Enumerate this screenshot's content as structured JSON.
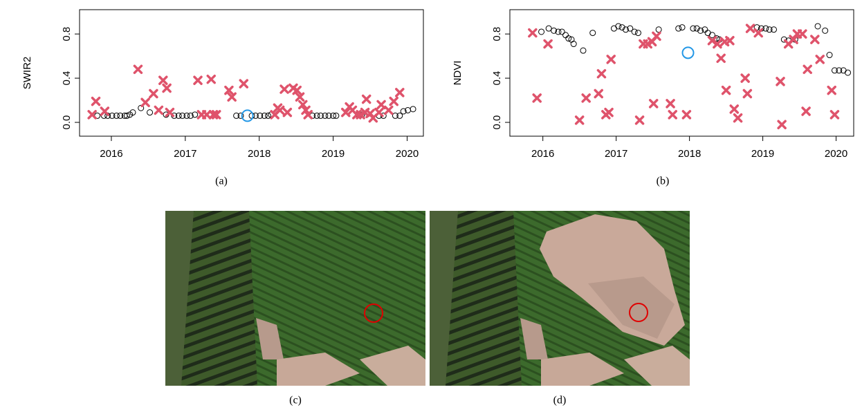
{
  "chart_data": [
    {
      "type": "scatter",
      "y_label": "SWIR2",
      "caption": "(a)",
      "xlim": [
        2015.57,
        2020.22
      ],
      "ylim": [
        -0.125,
        1.02
      ],
      "xticks": [
        2016,
        2017,
        2018,
        2019,
        2020
      ],
      "yticks": [
        {
          "value": 0,
          "label": "0.0"
        },
        0.4,
        0.8
      ],
      "series": [
        {
          "marker": "circle",
          "color": "#000000",
          "x": [
            2015.81,
            2015.9,
            2015.95,
            2016.01,
            2016.07,
            2016.12,
            2016.18,
            2016.21,
            2016.25,
            2016.29,
            2016.4,
            2016.52,
            2016.74,
            2016.85,
            2016.91,
            2016.96,
            2017.02,
            2017.07,
            2017.13,
            2017.69,
            2017.75,
            2017.9,
            2017.95,
            2018.01,
            2018.07,
            2018.12,
            2018.16,
            2018.72,
            2018.78,
            2018.83,
            2018.89,
            2018.94,
            2019.0,
            2019.04,
            2019.34,
            2019.39,
            2019.62,
            2019.68,
            2019.84,
            2019.9,
            2019.95,
            2020.01,
            2020.08
          ],
          "values": [
            0.06,
            0.06,
            0.06,
            0.06,
            0.06,
            0.06,
            0.06,
            0.06,
            0.07,
            0.09,
            0.13,
            0.09,
            0.07,
            0.06,
            0.06,
            0.06,
            0.06,
            0.06,
            0.07,
            0.06,
            0.06,
            0.06,
            0.06,
            0.06,
            0.06,
            0.06,
            0.07,
            0.06,
            0.06,
            0.06,
            0.06,
            0.06,
            0.06,
            0.06,
            0.07,
            0.07,
            0.06,
            0.06,
            0.06,
            0.06,
            0.1,
            0.11,
            0.12
          ]
        },
        {
          "marker": "cross",
          "color": "#df536b",
          "x": [
            2015.74,
            2015.79,
            2015.91,
            2016.36,
            2016.46,
            2016.57,
            2016.64,
            2016.7,
            2016.75,
            2016.79,
            2017.17,
            2017.22,
            2017.29,
            2017.35,
            2017.38,
            2017.42,
            2017.59,
            2017.63,
            2017.79,
            2018.21,
            2018.25,
            2018.28,
            2018.34,
            2018.38,
            2018.46,
            2018.51,
            2018.55,
            2018.59,
            2018.63,
            2018.66,
            2019.17,
            2019.22,
            2019.26,
            2019.32,
            2019.37,
            2019.43,
            2019.45,
            2019.5,
            2019.54,
            2019.62,
            2019.65,
            2019.75,
            2019.82,
            2019.9
          ],
          "values": [
            0.07,
            0.19,
            0.1,
            0.48,
            0.18,
            0.26,
            0.11,
            0.38,
            0.31,
            0.09,
            0.38,
            0.07,
            0.07,
            0.39,
            0.07,
            0.07,
            0.29,
            0.23,
            0.35,
            0.07,
            0.13,
            0.11,
            0.3,
            0.09,
            0.31,
            0.29,
            0.23,
            0.16,
            0.11,
            0.07,
            0.09,
            0.14,
            0.11,
            0.07,
            0.07,
            0.09,
            0.21,
            0.08,
            0.04,
            0.09,
            0.16,
            0.11,
            0.19,
            0.27
          ]
        },
        {
          "marker": "ring",
          "color": "#2297e6",
          "x": [
            2017.84
          ],
          "values": [
            0.06
          ]
        }
      ]
    },
    {
      "type": "scatter",
      "y_label": "NDVI",
      "caption": "(b)",
      "xlim": [
        2015.55,
        2020.24
      ],
      "ylim": [
        -0.125,
        1.02
      ],
      "xticks": [
        2016,
        2017,
        2018,
        2019,
        2020
      ],
      "yticks": [
        {
          "value": 0,
          "label": "0.0"
        },
        0.4,
        0.8
      ],
      "series": [
        {
          "marker": "circle",
          "color": "#000000",
          "x": [
            2015.98,
            2016.08,
            2016.15,
            2016.21,
            2016.26,
            2016.31,
            2016.35,
            2016.39,
            2016.42,
            2016.55,
            2016.68,
            2016.97,
            2017.03,
            2017.08,
            2017.13,
            2017.19,
            2017.25,
            2017.3,
            2017.58,
            2017.85,
            2017.9,
            2018.05,
            2018.1,
            2018.15,
            2018.21,
            2018.25,
            2018.31,
            2018.37,
            2018.41,
            2018.92,
            2018.98,
            2019.04,
            2019.09,
            2019.15,
            2019.29,
            2019.35,
            2019.44,
            2019.75,
            2019.85,
            2019.91,
            2019.98,
            2020.04,
            2020.1,
            2020.16
          ],
          "values": [
            0.82,
            0.85,
            0.83,
            0.82,
            0.82,
            0.79,
            0.76,
            0.75,
            0.71,
            0.65,
            0.81,
            0.85,
            0.87,
            0.86,
            0.84,
            0.85,
            0.82,
            0.81,
            0.84,
            0.85,
            0.86,
            0.85,
            0.85,
            0.83,
            0.84,
            0.81,
            0.79,
            0.76,
            0.75,
            0.86,
            0.85,
            0.85,
            0.84,
            0.84,
            0.75,
            0.74,
            0.75,
            0.87,
            0.83,
            0.61,
            0.47,
            0.47,
            0.47,
            0.45
          ]
        },
        {
          "marker": "cross",
          "color": "#df536b",
          "x": [
            2015.86,
            2015.92,
            2016.07,
            2016.5,
            2016.59,
            2016.76,
            2016.8,
            2016.86,
            2016.9,
            2016.93,
            2017.32,
            2017.37,
            2017.43,
            2017.49,
            2017.55,
            2017.51,
            2017.74,
            2017.77,
            2017.96,
            2018.31,
            2018.38,
            2018.43,
            2018.48,
            2018.55,
            2018.5,
            2018.61,
            2018.66,
            2018.76,
            2018.79,
            2018.83,
            2018.94,
            2019.24,
            2019.26,
            2019.35,
            2019.42,
            2019.47,
            2019.54,
            2019.61,
            2019.59,
            2019.71,
            2019.78,
            2019.94,
            2019.98
          ],
          "values": [
            0.81,
            0.22,
            0.71,
            0.02,
            0.22,
            0.26,
            0.44,
            0.07,
            0.09,
            0.57,
            0.02,
            0.71,
            0.71,
            0.73,
            0.78,
            0.17,
            0.17,
            0.07,
            0.07,
            0.74,
            0.71,
            0.58,
            0.73,
            0.74,
            0.29,
            0.12,
            0.04,
            0.4,
            0.26,
            0.85,
            0.81,
            0.37,
            -0.02,
            0.71,
            0.75,
            0.8,
            0.8,
            0.48,
            0.1,
            0.75,
            0.57,
            0.29,
            0.07
          ]
        },
        {
          "marker": "ring",
          "color": "#2297e6",
          "x": [
            2017.98
          ],
          "values": [
            0.63
          ]
        }
      ]
    }
  ],
  "figures": [
    {
      "caption": "(c)"
    },
    {
      "caption": "(d)"
    }
  ]
}
